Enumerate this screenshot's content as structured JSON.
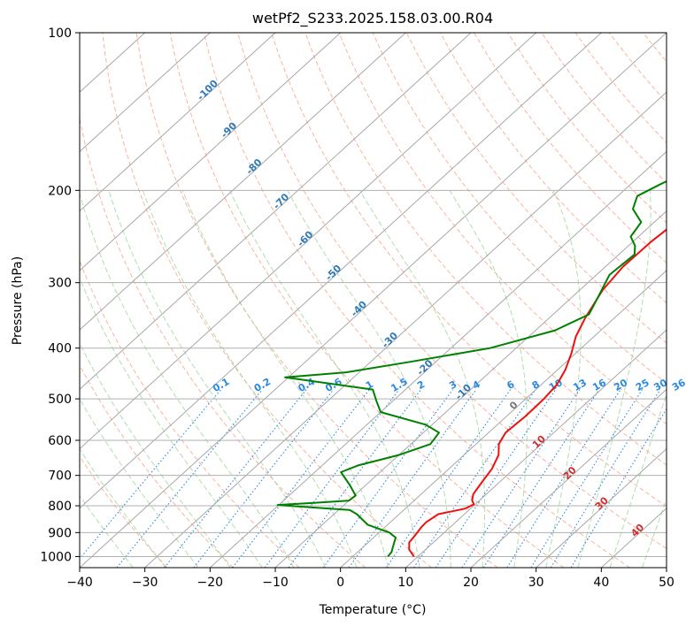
{
  "chart_data": {
    "type": "line",
    "title": "wetPf2_S233.2025.158.03.00.R04",
    "xlabel": "Temperature (°C)",
    "ylabel": "Pressure (hPa)",
    "xlim": [
      -40,
      50
    ],
    "ylim": [
      1050,
      100
    ],
    "y_scale": "log",
    "grid": true,
    "x_ticks": [
      -40,
      -30,
      -20,
      -10,
      0,
      10,
      20,
      30,
      40,
      50
    ],
    "x_tick_labels": [
      "−40",
      "−30",
      "−20",
      "−10",
      "0",
      "10",
      "20",
      "30",
      "40",
      "50"
    ],
    "y_ticks": [
      100,
      200,
      300,
      400,
      500,
      600,
      700,
      800,
      900,
      1000
    ],
    "y_tick_labels": [
      "100",
      "200",
      "300",
      "400",
      "500",
      "600",
      "700",
      "800",
      "900",
      "1000"
    ],
    "isotherm_labels": [
      {
        "value": -100,
        "text": "-100"
      },
      {
        "value": -90,
        "text": "-90"
      },
      {
        "value": -80,
        "text": "-80"
      },
      {
        "value": -70,
        "text": "-70"
      },
      {
        "value": -60,
        "text": "-60"
      },
      {
        "value": -50,
        "text": "-50"
      },
      {
        "value": -40,
        "text": "-40"
      },
      {
        "value": -30,
        "text": "-30"
      },
      {
        "value": -20,
        "text": "-20"
      },
      {
        "value": -10,
        "text": "-10"
      }
    ],
    "mixing_ratio_labels": [
      "0.1",
      "0.2",
      "0.4",
      "0.6",
      "1",
      "1.5",
      "2",
      "3",
      "4",
      "6",
      "8",
      "10",
      "13",
      "16",
      "20",
      "25",
      "30",
      "36"
    ],
    "isotherm_labels_warm": [
      {
        "value": 0,
        "text": "0"
      },
      {
        "value": 10,
        "text": "10"
      },
      {
        "value": 20,
        "text": "20"
      },
      {
        "value": 30,
        "text": "30"
      },
      {
        "value": 40,
        "text": "40"
      }
    ],
    "series": [
      {
        "color": "#ee1111",
        "points": [
          [
            9.4,
            1000
          ],
          [
            7.5,
            970
          ],
          [
            6.3,
            940
          ],
          [
            6.0,
            910
          ],
          [
            5.6,
            880
          ],
          [
            5.5,
            860
          ],
          [
            6.0,
            830
          ],
          [
            9.2,
            810
          ],
          [
            9.8,
            795
          ],
          [
            8.8,
            780
          ],
          [
            8.0,
            760
          ],
          [
            7.3,
            720
          ],
          [
            6.6,
            680
          ],
          [
            5.3,
            640
          ],
          [
            3.5,
            610
          ],
          [
            2.6,
            580
          ],
          [
            2.9,
            540
          ],
          [
            2.8,
            500
          ],
          [
            2.4,
            470
          ],
          [
            1.2,
            440
          ],
          [
            -0.6,
            410
          ],
          [
            -2.8,
            380
          ],
          [
            -4.5,
            350
          ],
          [
            -6.5,
            310
          ],
          [
            -7.3,
            280
          ],
          [
            -7.2,
            250
          ],
          [
            -6.8,
            235
          ],
          [
            -4.0,
            220
          ],
          [
            -1.0,
            208
          ],
          [
            2.0,
            198
          ],
          [
            6.0,
            185
          ],
          [
            10.0,
            170
          ],
          [
            14.0,
            155
          ],
          [
            16.0,
            145
          ],
          [
            17.5,
            135
          ],
          [
            19.5,
            125
          ],
          [
            21.2,
            115
          ],
          [
            21.8,
            108
          ],
          [
            22.2,
            100
          ]
        ]
      },
      {
        "color": "#008000",
        "points": [
          [
            5.4,
            1000
          ],
          [
            5.2,
            980
          ],
          [
            4.6,
            960
          ],
          [
            3.4,
            920
          ],
          [
            1.6,
            900
          ],
          [
            -3.0,
            870
          ],
          [
            -6.5,
            830
          ],
          [
            -8.3,
            815
          ],
          [
            -15.0,
            805
          ],
          [
            -20.2,
            797
          ],
          [
            -15.0,
            790
          ],
          [
            -10.0,
            782
          ],
          [
            -9.8,
            765
          ],
          [
            -12.5,
            730
          ],
          [
            -16.0,
            690
          ],
          [
            -14.5,
            670
          ],
          [
            -10.0,
            640
          ],
          [
            -7.0,
            610
          ],
          [
            -7.6,
            580
          ],
          [
            -11.0,
            560
          ],
          [
            -20.0,
            530
          ],
          [
            -22.5,
            505
          ],
          [
            -25.0,
            480
          ],
          [
            -40.5,
            455
          ],
          [
            -32.0,
            445
          ],
          [
            -24.0,
            425
          ],
          [
            -14.0,
            400
          ],
          [
            -7.0,
            370
          ],
          [
            -4.5,
            345
          ],
          [
            -6.0,
            320
          ],
          [
            -8.0,
            290
          ],
          [
            -7.6,
            265
          ],
          [
            -9.0,
            255
          ],
          [
            -11.2,
            245
          ],
          [
            -12.0,
            230
          ],
          [
            -15.5,
            217
          ],
          [
            -17.0,
            205
          ],
          [
            -15.5,
            195
          ],
          [
            -13.3,
            183
          ],
          [
            -14.0,
            170
          ],
          [
            -14.5,
            160
          ],
          [
            -12.0,
            150
          ],
          [
            -8.0,
            138
          ],
          [
            -4.8,
            125
          ],
          [
            -1.5,
            113
          ],
          [
            0.5,
            100
          ]
        ]
      }
    ]
  }
}
